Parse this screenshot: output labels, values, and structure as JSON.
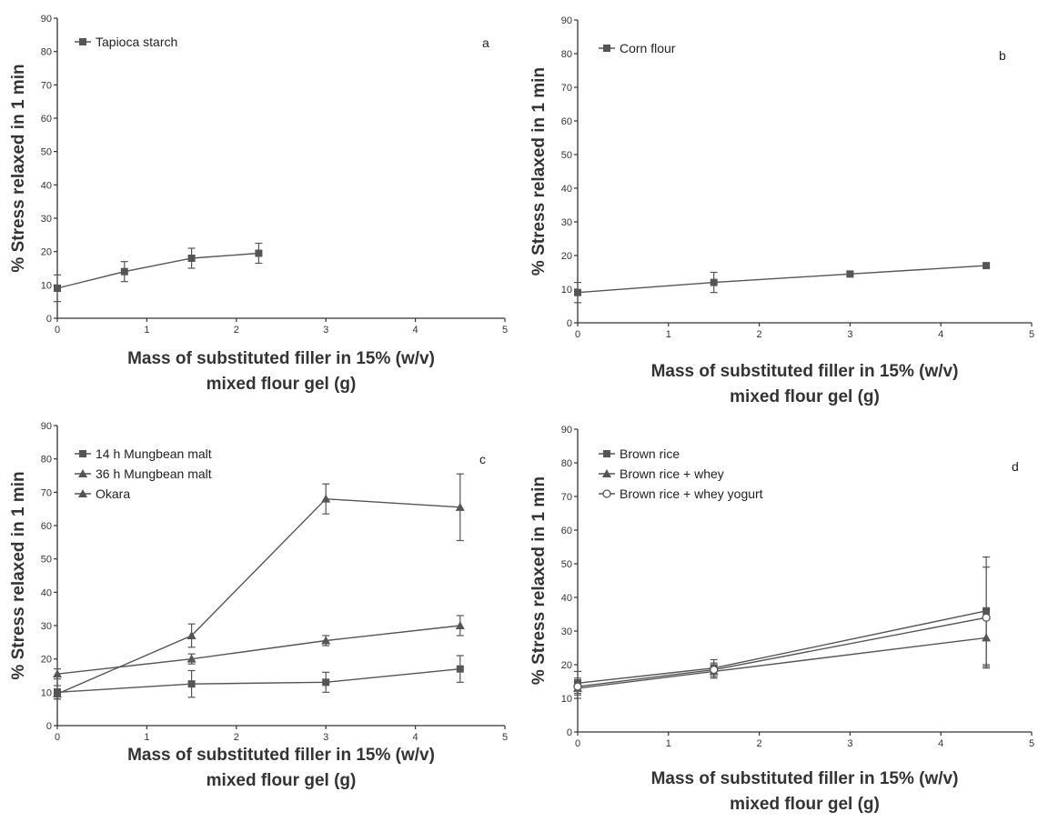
{
  "chart_data": [
    {
      "type": "line",
      "panel": "a",
      "ylabel": "% Stress relaxed in 1 min",
      "xlabel": [
        "Mass of substituted filler in 15% (w/v)",
        "mixed flour gel (g)"
      ],
      "xlim": [
        0,
        5
      ],
      "ylim": [
        0,
        90
      ],
      "xticks": [
        0,
        1,
        2,
        3,
        4,
        5
      ],
      "yticks": [
        0,
        10,
        20,
        30,
        40,
        50,
        60,
        70,
        80,
        90
      ],
      "legend_position": "top-left",
      "series": [
        {
          "name": "Tapioca starch",
          "marker": "square",
          "x": [
            0,
            0.75,
            1.5,
            2.25
          ],
          "y": [
            9,
            14,
            18,
            19.5
          ],
          "err": [
            4,
            3,
            3,
            3
          ]
        }
      ]
    },
    {
      "type": "line",
      "panel": "b",
      "ylabel": "% Stress relaxed in 1 min",
      "xlabel": [
        "Mass of substituted filler in 15% (w/v)",
        "mixed flour gel (g)"
      ],
      "xlim": [
        0,
        5
      ],
      "ylim": [
        0,
        90
      ],
      "xticks": [
        0,
        1,
        2,
        3,
        4,
        5
      ],
      "yticks": [
        0,
        10,
        20,
        30,
        40,
        50,
        60,
        70,
        80,
        90
      ],
      "legend_position": "top-left",
      "series": [
        {
          "name": "Corn flour",
          "marker": "square",
          "x": [
            0,
            1.5,
            3,
            4.5
          ],
          "y": [
            9,
            12,
            14.5,
            17
          ],
          "err": [
            3,
            3,
            0.5,
            0.5
          ]
        }
      ]
    },
    {
      "type": "line",
      "panel": "c",
      "ylabel": "% Stress relaxed in 1 min",
      "xlabel": [
        "Mass of substituted filler in 15% (w/v)",
        "mixed flour gel (g)"
      ],
      "xlim": [
        0,
        5
      ],
      "ylim": [
        0,
        90
      ],
      "xticks": [
        0,
        1,
        2,
        3,
        4,
        5
      ],
      "yticks": [
        0,
        10,
        20,
        30,
        40,
        50,
        60,
        70,
        80,
        90
      ],
      "legend_position": "top-left",
      "series": [
        {
          "name": "14 h Mungbean malt",
          "marker": "square",
          "x": [
            0,
            1.5,
            3,
            4.5
          ],
          "y": [
            10,
            12.5,
            13,
            17
          ],
          "err": [
            2,
            4,
            3,
            4
          ]
        },
        {
          "name": "36 h Mungbean malt",
          "marker": "triangle",
          "x": [
            0,
            1.5,
            3,
            4.5
          ],
          "y": [
            15.5,
            20,
            25.5,
            30
          ],
          "err": [
            1.5,
            1.5,
            1.5,
            3
          ]
        },
        {
          "name": "Okara",
          "marker": "triangle",
          "x": [
            0,
            1.5,
            3,
            4.5
          ],
          "y": [
            9.5,
            27,
            68,
            65.5
          ],
          "err": [
            1.5,
            3.5,
            4.5,
            10
          ]
        }
      ]
    },
    {
      "type": "line",
      "panel": "d",
      "ylabel": "% Stress relaxed in 1 min",
      "xlabel": [
        "Mass of substituted filler in 15% (w/v)",
        "mixed flour gel (g)"
      ],
      "xlim": [
        0,
        5
      ],
      "ylim": [
        0,
        90
      ],
      "xticks": [
        0,
        1,
        2,
        3,
        4,
        5
      ],
      "yticks": [
        0,
        10,
        20,
        30,
        40,
        50,
        60,
        70,
        80,
        90
      ],
      "legend_position": "top-left",
      "series": [
        {
          "name": "Brown rice",
          "marker": "square",
          "x": [
            0,
            1.5,
            4.5
          ],
          "y": [
            14.5,
            19,
            36
          ],
          "err": [
            3.5,
            2.5,
            16
          ]
        },
        {
          "name": "Brown rice + whey",
          "marker": "triangle",
          "x": [
            0,
            1.5,
            4.5
          ],
          "y": [
            13,
            18,
            28
          ],
          "err": [
            3,
            2,
            8.5
          ]
        },
        {
          "name": "Brown rice + whey yogurt",
          "marker": "circle-open",
          "x": [
            0,
            1.5,
            4.5
          ],
          "y": [
            13.5,
            18.5,
            34
          ],
          "err": [
            2,
            2,
            15
          ]
        }
      ]
    }
  ],
  "colors": {
    "axis": "#333333",
    "series": "#555555",
    "background": "#ffffff"
  }
}
